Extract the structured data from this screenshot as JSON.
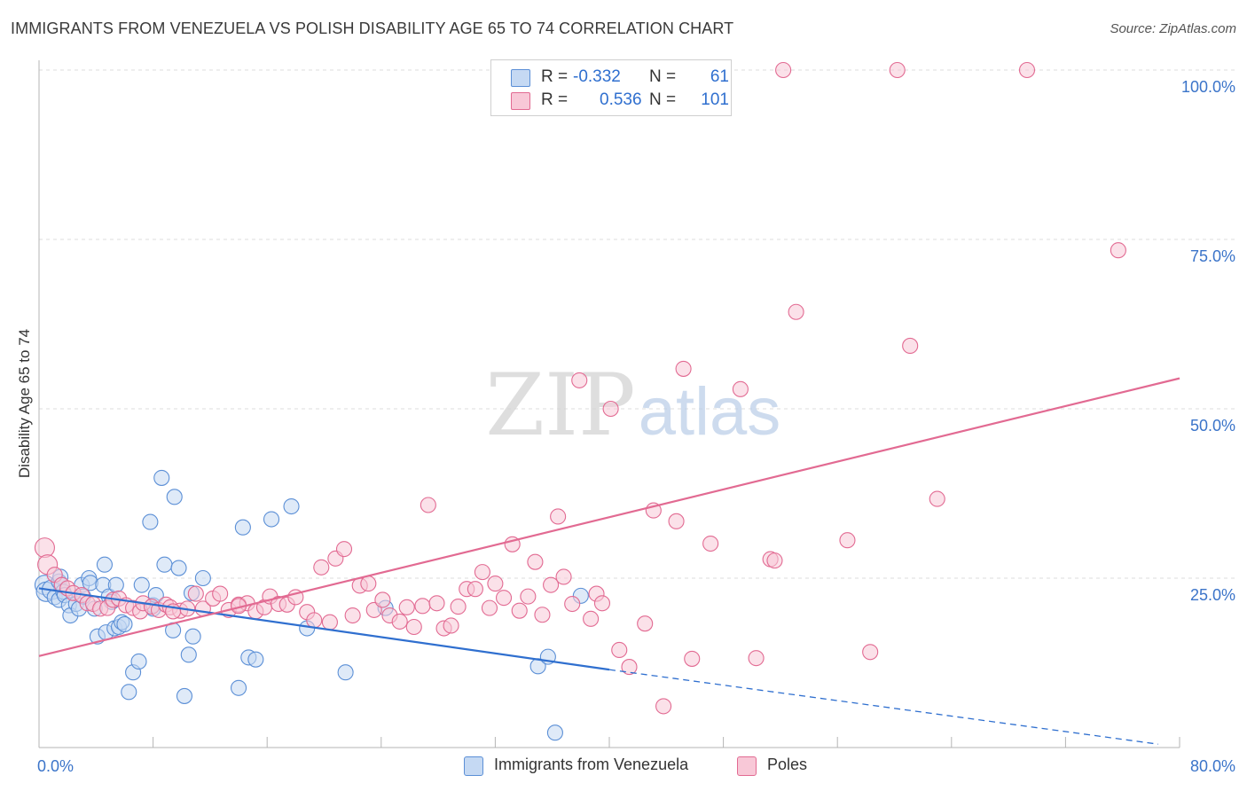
{
  "title": "IMMIGRANTS FROM VENEZUELA VS POLISH DISABILITY AGE 65 TO 74 CORRELATION CHART",
  "source": "Source: ZipAtlas.com",
  "watermark": {
    "zip": "ZIP",
    "atlas": "atlas"
  },
  "legend": {
    "r_label": "R =",
    "n_label": "N =",
    "rows": [
      {
        "r": "-0.332",
        "n": "61",
        "color": "#5b8fd6",
        "fill": "#c5d9f3"
      },
      {
        "r": "0.536",
        "n": "101",
        "color": "#e26a92",
        "fill": "#f8c8d7"
      }
    ]
  },
  "chart_data": {
    "type": "scatter",
    "title": "IMMIGRANTS FROM VENEZUELA VS POLISH DISABILITY AGE 65 TO 74 CORRELATION CHART",
    "xlabel": "",
    "ylabel": "Disability Age 65 to 74",
    "xlim": [
      0,
      80
    ],
    "ylim": [
      0,
      100
    ],
    "x_tick_labels": [
      "0.0%",
      "80.0%"
    ],
    "y_tick_labels": [
      "25.0%",
      "50.0%",
      "75.0%",
      "100.0%"
    ],
    "y_ticks": [
      25,
      50,
      75,
      100
    ],
    "grid": true,
    "legend_position": "bottom-center",
    "series": [
      {
        "name": "Immigrants from Venezuela",
        "color": "#5b8fd6",
        "fill": "#c5d9f3",
        "trend": {
          "x0": 0,
          "y0": 23.5,
          "x1": 40,
          "y1": 11.5,
          "dashed_to_x": 78.5,
          "dashed_to_y": 0.5,
          "color": "#2f6fcf"
        },
        "points": [
          [
            0.4,
            24
          ],
          [
            0.5,
            23
          ],
          [
            0.9,
            23.3
          ],
          [
            1.1,
            22.2
          ],
          [
            1.4,
            21.8
          ],
          [
            1.4,
            24.5
          ],
          [
            1.5,
            25.2
          ],
          [
            1.6,
            24
          ],
          [
            1.7,
            23
          ],
          [
            1.8,
            22.5
          ],
          [
            2.1,
            21
          ],
          [
            2.2,
            19.5
          ],
          [
            2.6,
            21.2
          ],
          [
            2.8,
            20.5
          ],
          [
            3.0,
            24
          ],
          [
            3.1,
            22.3
          ],
          [
            3.5,
            25
          ],
          [
            3.6,
            24.3
          ],
          [
            3.9,
            20.5
          ],
          [
            4.1,
            16.4
          ],
          [
            4.5,
            24
          ],
          [
            4.6,
            27
          ],
          [
            4.7,
            17
          ],
          [
            4.9,
            22.3
          ],
          [
            5.1,
            21.5
          ],
          [
            5.3,
            17.6
          ],
          [
            5.4,
            24
          ],
          [
            5.6,
            17.8
          ],
          [
            5.8,
            18.5
          ],
          [
            6.0,
            18.2
          ],
          [
            6.3,
            8.2
          ],
          [
            6.6,
            11.1
          ],
          [
            7.0,
            12.7
          ],
          [
            7.2,
            24
          ],
          [
            7.8,
            33.3
          ],
          [
            8.0,
            21
          ],
          [
            8.0,
            20.5
          ],
          [
            8.2,
            22.5
          ],
          [
            8.6,
            39.8
          ],
          [
            8.8,
            27
          ],
          [
            9.4,
            17.3
          ],
          [
            9.5,
            37
          ],
          [
            9.8,
            26.5
          ],
          [
            10.2,
            7.6
          ],
          [
            10.5,
            13.7
          ],
          [
            10.7,
            22.8
          ],
          [
            10.8,
            16.4
          ],
          [
            11.5,
            25
          ],
          [
            14.0,
            8.8
          ],
          [
            14.3,
            32.5
          ],
          [
            14.7,
            13.3
          ],
          [
            15.2,
            13
          ],
          [
            16.3,
            33.7
          ],
          [
            17.7,
            35.6
          ],
          [
            18.8,
            17.6
          ],
          [
            21.5,
            11.1
          ],
          [
            35.0,
            12
          ],
          [
            35.7,
            13.4
          ],
          [
            36.2,
            2.2
          ],
          [
            38.0,
            22.4
          ],
          [
            24.3,
            20.6
          ]
        ]
      },
      {
        "name": "Poles",
        "color": "#e26a92",
        "fill": "#f8c8d7",
        "trend": {
          "x0": 0,
          "y0": 13.5,
          "x1": 80,
          "y1": 54.5,
          "color": "#e26a92"
        },
        "points": [
          [
            0.4,
            29.5
          ],
          [
            0.6,
            27
          ],
          [
            1.1,
            25.5
          ],
          [
            1.6,
            24
          ],
          [
            2.0,
            23.5
          ],
          [
            2.4,
            22.8
          ],
          [
            3.0,
            22.5
          ],
          [
            3.4,
            21.3
          ],
          [
            3.8,
            21.2
          ],
          [
            4.3,
            20.5
          ],
          [
            4.8,
            20.6
          ],
          [
            5.2,
            21.8
          ],
          [
            5.6,
            22
          ],
          [
            6.1,
            21
          ],
          [
            6.6,
            20.6
          ],
          [
            7.1,
            20.1
          ],
          [
            7.3,
            21.3
          ],
          [
            7.9,
            20.8
          ],
          [
            8.4,
            20.3
          ],
          [
            8.9,
            21.1
          ],
          [
            9.2,
            20.7
          ],
          [
            9.9,
            20.2
          ],
          [
            10.4,
            20.5
          ],
          [
            11.0,
            22.7
          ],
          [
            11.5,
            20.5
          ],
          [
            12.2,
            22
          ],
          [
            12.7,
            22.7
          ],
          [
            13.3,
            20.3
          ],
          [
            14.0,
            21.1
          ],
          [
            14.6,
            21.3
          ],
          [
            15.2,
            20.1
          ],
          [
            15.8,
            20.7
          ],
          [
            16.2,
            22.3
          ],
          [
            16.8,
            21.2
          ],
          [
            17.4,
            21.1
          ],
          [
            18.0,
            22.2
          ],
          [
            18.8,
            20
          ],
          [
            19.3,
            18.8
          ],
          [
            19.8,
            26.6
          ],
          [
            20.4,
            18.5
          ],
          [
            20.8,
            27.9
          ],
          [
            21.4,
            29.3
          ],
          [
            22.0,
            19.5
          ],
          [
            22.5,
            23.9
          ],
          [
            23.1,
            24.2
          ],
          [
            23.5,
            20.3
          ],
          [
            24.1,
            21.8
          ],
          [
            24.6,
            19.5
          ],
          [
            25.3,
            18.6
          ],
          [
            25.8,
            20.7
          ],
          [
            26.3,
            17.8
          ],
          [
            26.9,
            20.9
          ],
          [
            27.3,
            35.8
          ],
          [
            27.9,
            21.3
          ],
          [
            28.4,
            17.6
          ],
          [
            28.9,
            18
          ],
          [
            29.4,
            20.8
          ],
          [
            30.0,
            23.4
          ],
          [
            30.6,
            23.4
          ],
          [
            31.1,
            25.9
          ],
          [
            31.6,
            20.6
          ],
          [
            32.0,
            24.2
          ],
          [
            32.6,
            22.1
          ],
          [
            33.2,
            30
          ],
          [
            33.7,
            20.2
          ],
          [
            34.3,
            22.3
          ],
          [
            34.8,
            27.4
          ],
          [
            35.3,
            19.6
          ],
          [
            35.9,
            24
          ],
          [
            36.4,
            34.1
          ],
          [
            36.8,
            25.2
          ],
          [
            37.4,
            21.2
          ],
          [
            37.9,
            54.2
          ],
          [
            38.7,
            19
          ],
          [
            39.1,
            22.7
          ],
          [
            39.5,
            21.3
          ],
          [
            40.1,
            50
          ],
          [
            40.7,
            14.4
          ],
          [
            41.4,
            11.9
          ],
          [
            42.5,
            18.3
          ],
          [
            43.1,
            35
          ],
          [
            43.8,
            6.1
          ],
          [
            44.7,
            33.4
          ],
          [
            45.2,
            55.9
          ],
          [
            45.8,
            13.1
          ],
          [
            47.1,
            30.1
          ],
          [
            49.2,
            52.9
          ],
          [
            50.3,
            13.2
          ],
          [
            51.3,
            27.8
          ],
          [
            51.6,
            27.6
          ],
          [
            52.2,
            100
          ],
          [
            53.1,
            64.3
          ],
          [
            56.7,
            30.6
          ],
          [
            58.3,
            14.1
          ],
          [
            60.2,
            100
          ],
          [
            61.1,
            59.3
          ],
          [
            63.0,
            36.7
          ],
          [
            69.3,
            100
          ],
          [
            75.7,
            73.4
          ],
          [
            9.4,
            20.1
          ],
          [
            14.0,
            20.9
          ]
        ]
      }
    ]
  },
  "bottom_legend": [
    "Immigrants from Venezuela",
    "Poles"
  ]
}
